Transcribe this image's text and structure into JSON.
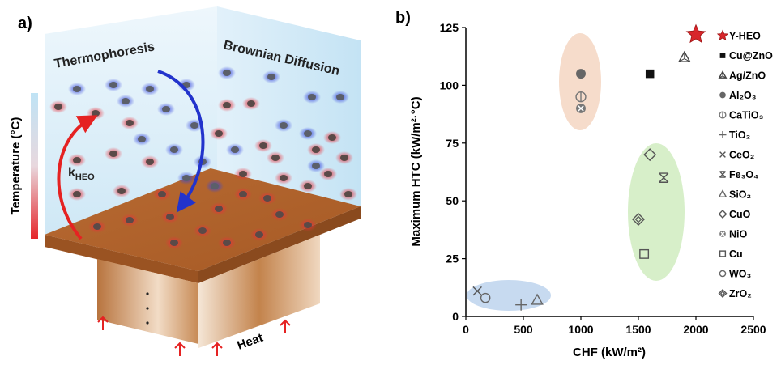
{
  "panel_a": {
    "label": "a)",
    "thermophoresis": "Thermophoresis",
    "brownian": "Brownian Diffusion",
    "k": "k",
    "k_sub": "HEO",
    "temperature": "Temperature (°C)",
    "heat": "Heat"
  },
  "chart_data": {
    "type": "scatter",
    "panel_label": "b)",
    "x_label": "CHF (kW/m²)",
    "y_label": "Maximum HTC (kW/m²·°C)",
    "xlim": [
      0,
      2500
    ],
    "xticks": [
      0,
      500,
      1000,
      1500,
      2000,
      2500
    ],
    "ylim": [
      0,
      125
    ],
    "yticks": [
      0,
      25,
      50,
      75,
      100,
      125
    ],
    "series": [
      {
        "name": "Y-HEO",
        "marker": "star",
        "color": "#d8262b",
        "x": [
          2000
        ],
        "values": [
          122
        ]
      },
      {
        "name": "Cu@ZnO",
        "marker": "square",
        "color": "#111111",
        "x": [
          1600
        ],
        "values": [
          105
        ]
      },
      {
        "name": "Ag/ZnO",
        "marker": "triangle-lines",
        "color": "#444444",
        "x": [
          1900
        ],
        "values": [
          112
        ]
      },
      {
        "name": "Al₂O₃",
        "marker": "circle",
        "color": "#666666",
        "x": [
          1000
        ],
        "values": [
          105
        ]
      },
      {
        "name": "CaTiO₃",
        "marker": "circle-line",
        "color": "#777777",
        "x": [
          1000
        ],
        "values": [
          95
        ]
      },
      {
        "name": "TiO₂",
        "marker": "plus",
        "color": "#666666",
        "x": [
          480
        ],
        "values": [
          5
        ]
      },
      {
        "name": "CeO₂",
        "marker": "cross",
        "color": "#555555",
        "x": [
          100
        ],
        "values": [
          11
        ]
      },
      {
        "name": "Fe₃O₄",
        "marker": "asterisk",
        "color": "#555555",
        "x": [
          1720
        ],
        "values": [
          60
        ]
      },
      {
        "name": "SiO₂",
        "marker": "triangle",
        "color": "#666666",
        "x": [
          620
        ],
        "values": [
          7
        ]
      },
      {
        "name": "CuO",
        "marker": "diamond",
        "color": "#555555",
        "x": [
          1600
        ],
        "values": [
          70
        ]
      },
      {
        "name": "NiO",
        "marker": "circle-x",
        "color": "#777777",
        "x": [
          1000
        ],
        "values": [
          90
        ]
      },
      {
        "name": "Cu",
        "marker": "square-open",
        "color": "#555555",
        "x": [
          1550
        ],
        "values": [
          27
        ]
      },
      {
        "name": "WO₃",
        "marker": "circle-open",
        "color": "#666666",
        "x": [
          170
        ],
        "values": [
          8
        ]
      },
      {
        "name": "ZrO₂",
        "marker": "diamond-double",
        "color": "#555555",
        "x": [
          1500
        ],
        "values": [
          42
        ]
      }
    ]
  }
}
